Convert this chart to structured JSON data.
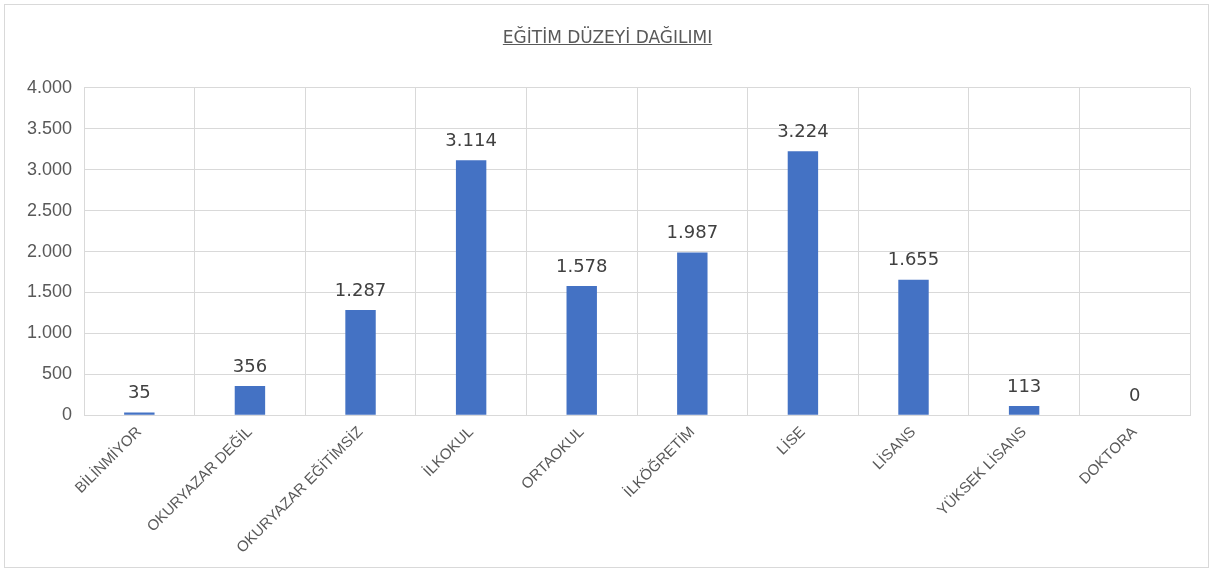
{
  "chart_data": {
    "type": "bar",
    "title": "EĞİTİM DÜZEYİ DAĞILIMI",
    "categories": [
      "BİLİNMİYOR",
      "OKURYAZAR DEĞİL",
      "OKURYAZAR EĞİTİMSİZ",
      "İLKOKUL",
      "ORTAOKUL",
      "İLKÖĞRETİM",
      "LİSE",
      "LİSANS",
      "YÜKSEK LİSANS",
      "DOKTORA"
    ],
    "values": [
      35,
      356,
      1287,
      3114,
      1578,
      1987,
      3224,
      1655,
      113,
      0
    ],
    "value_labels": [
      "35",
      "356",
      "1.287",
      "3.114",
      "1.578",
      "1.987",
      "3.224",
      "1.655",
      "113",
      "0"
    ],
    "color": "#4472c4",
    "ylim": [
      0,
      4000
    ],
    "yticks": [
      {
        "value": 0,
        "label": "0"
      },
      {
        "value": 500,
        "label": "500"
      },
      {
        "value": 1000,
        "label": "1.000"
      },
      {
        "value": 1500,
        "label": "1.500"
      },
      {
        "value": 2000,
        "label": "2.000"
      },
      {
        "value": 2500,
        "label": "2.500"
      },
      {
        "value": 3000,
        "label": "3.000"
      },
      {
        "value": 3500,
        "label": "3.500"
      },
      {
        "value": 4000,
        "label": "4.000"
      }
    ],
    "grid": true,
    "legend": false
  }
}
